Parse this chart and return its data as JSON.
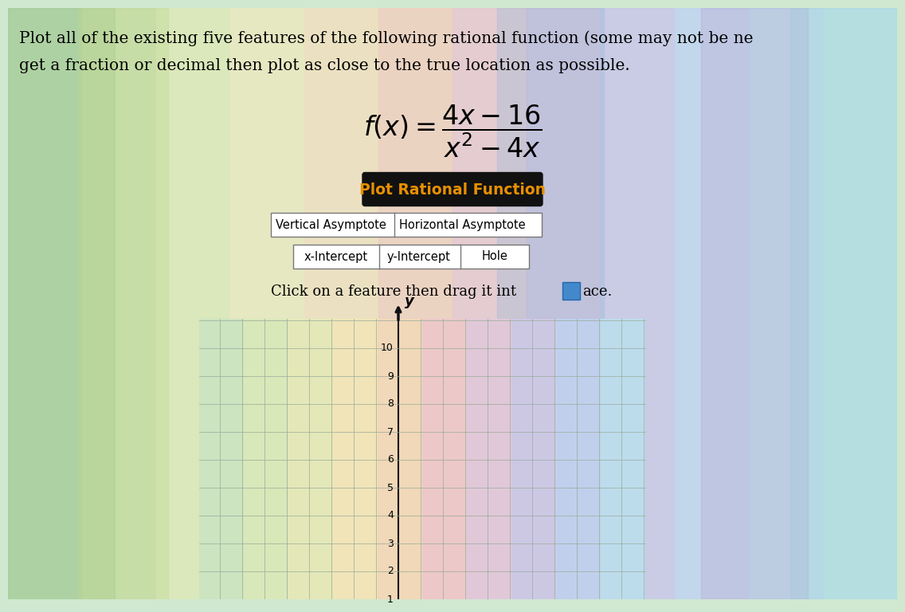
{
  "title_line1": "Plot all of the existing five features of the following rational function (some may not be ne",
  "title_line2": "get a fraction or decimal then plot as close to the true location as possible.",
  "button_main": "Plot Rational Function",
  "button_va": "Vertical Asymptote",
  "button_ha": "Horizontal Asymptote",
  "button_xi": "x-Intercept",
  "button_yi": "y-Intercept",
  "button_hole": "Hole",
  "instruction_pre": "Click on a feature then drag it int",
  "instruction_post": "ace.",
  "y_label": "y",
  "y_ticks": [
    1,
    2,
    3,
    4,
    5,
    6,
    7,
    8,
    9,
    10
  ],
  "text_color": "#000000",
  "btn_main_bg": "#111111",
  "btn_main_fg": "#e89000",
  "btn_border": "#555555",
  "grid_line_color": "#9aaa9a",
  "axis_color": "#111111",
  "bg_bands": [
    "#b8d8b0",
    "#cce0b0",
    "#dce8b8",
    "#eae8c0",
    "#f0e0c0",
    "#f0d0c0",
    "#e8c8d0",
    "#d8c0e0",
    "#c8c8e8",
    "#c0d4f0",
    "#bce0f0",
    "#bce8e8"
  ],
  "grid_bands": [
    "#cce4c0",
    "#d8e8b8",
    "#e4e8b8",
    "#f0e4b8",
    "#f0d8b8",
    "#ecc8c8",
    "#e0c8d8",
    "#ccc8e4",
    "#c0d0ec",
    "#bcdcec"
  ]
}
